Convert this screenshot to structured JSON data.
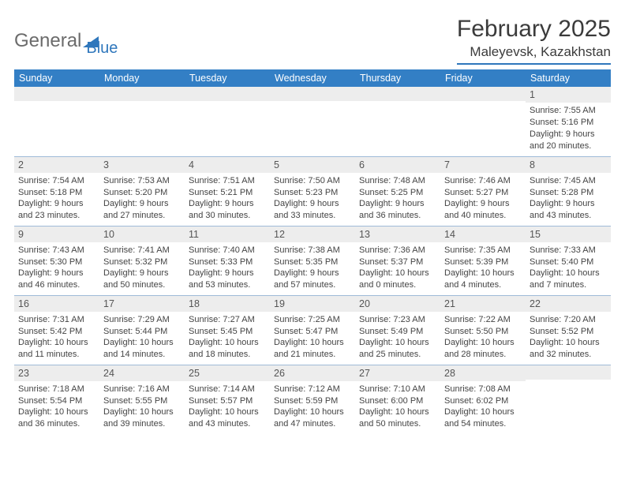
{
  "logo": {
    "word1": "General",
    "word2": "Blue"
  },
  "title": "February 2025",
  "location": "Maleyevsk, Kazakhstan",
  "colors": {
    "header_bg": "#337fc5",
    "header_text": "#ffffff",
    "daynum_bg": "#ededed",
    "rule": "#9fbbd8",
    "accent": "#2f77bc"
  },
  "day_headers": [
    "Sunday",
    "Monday",
    "Tuesday",
    "Wednesday",
    "Thursday",
    "Friday",
    "Saturday"
  ],
  "weeks": [
    [
      null,
      null,
      null,
      null,
      null,
      null,
      {
        "n": "1",
        "sr": "Sunrise: 7:55 AM",
        "ss": "Sunset: 5:16 PM",
        "d1": "Daylight: 9 hours",
        "d2": "and 20 minutes."
      }
    ],
    [
      {
        "n": "2",
        "sr": "Sunrise: 7:54 AM",
        "ss": "Sunset: 5:18 PM",
        "d1": "Daylight: 9 hours",
        "d2": "and 23 minutes."
      },
      {
        "n": "3",
        "sr": "Sunrise: 7:53 AM",
        "ss": "Sunset: 5:20 PM",
        "d1": "Daylight: 9 hours",
        "d2": "and 27 minutes."
      },
      {
        "n": "4",
        "sr": "Sunrise: 7:51 AM",
        "ss": "Sunset: 5:21 PM",
        "d1": "Daylight: 9 hours",
        "d2": "and 30 minutes."
      },
      {
        "n": "5",
        "sr": "Sunrise: 7:50 AM",
        "ss": "Sunset: 5:23 PM",
        "d1": "Daylight: 9 hours",
        "d2": "and 33 minutes."
      },
      {
        "n": "6",
        "sr": "Sunrise: 7:48 AM",
        "ss": "Sunset: 5:25 PM",
        "d1": "Daylight: 9 hours",
        "d2": "and 36 minutes."
      },
      {
        "n": "7",
        "sr": "Sunrise: 7:46 AM",
        "ss": "Sunset: 5:27 PM",
        "d1": "Daylight: 9 hours",
        "d2": "and 40 minutes."
      },
      {
        "n": "8",
        "sr": "Sunrise: 7:45 AM",
        "ss": "Sunset: 5:28 PM",
        "d1": "Daylight: 9 hours",
        "d2": "and 43 minutes."
      }
    ],
    [
      {
        "n": "9",
        "sr": "Sunrise: 7:43 AM",
        "ss": "Sunset: 5:30 PM",
        "d1": "Daylight: 9 hours",
        "d2": "and 46 minutes."
      },
      {
        "n": "10",
        "sr": "Sunrise: 7:41 AM",
        "ss": "Sunset: 5:32 PM",
        "d1": "Daylight: 9 hours",
        "d2": "and 50 minutes."
      },
      {
        "n": "11",
        "sr": "Sunrise: 7:40 AM",
        "ss": "Sunset: 5:33 PM",
        "d1": "Daylight: 9 hours",
        "d2": "and 53 minutes."
      },
      {
        "n": "12",
        "sr": "Sunrise: 7:38 AM",
        "ss": "Sunset: 5:35 PM",
        "d1": "Daylight: 9 hours",
        "d2": "and 57 minutes."
      },
      {
        "n": "13",
        "sr": "Sunrise: 7:36 AM",
        "ss": "Sunset: 5:37 PM",
        "d1": "Daylight: 10 hours",
        "d2": "and 0 minutes."
      },
      {
        "n": "14",
        "sr": "Sunrise: 7:35 AM",
        "ss": "Sunset: 5:39 PM",
        "d1": "Daylight: 10 hours",
        "d2": "and 4 minutes."
      },
      {
        "n": "15",
        "sr": "Sunrise: 7:33 AM",
        "ss": "Sunset: 5:40 PM",
        "d1": "Daylight: 10 hours",
        "d2": "and 7 minutes."
      }
    ],
    [
      {
        "n": "16",
        "sr": "Sunrise: 7:31 AM",
        "ss": "Sunset: 5:42 PM",
        "d1": "Daylight: 10 hours",
        "d2": "and 11 minutes."
      },
      {
        "n": "17",
        "sr": "Sunrise: 7:29 AM",
        "ss": "Sunset: 5:44 PM",
        "d1": "Daylight: 10 hours",
        "d2": "and 14 minutes."
      },
      {
        "n": "18",
        "sr": "Sunrise: 7:27 AM",
        "ss": "Sunset: 5:45 PM",
        "d1": "Daylight: 10 hours",
        "d2": "and 18 minutes."
      },
      {
        "n": "19",
        "sr": "Sunrise: 7:25 AM",
        "ss": "Sunset: 5:47 PM",
        "d1": "Daylight: 10 hours",
        "d2": "and 21 minutes."
      },
      {
        "n": "20",
        "sr": "Sunrise: 7:23 AM",
        "ss": "Sunset: 5:49 PM",
        "d1": "Daylight: 10 hours",
        "d2": "and 25 minutes."
      },
      {
        "n": "21",
        "sr": "Sunrise: 7:22 AM",
        "ss": "Sunset: 5:50 PM",
        "d1": "Daylight: 10 hours",
        "d2": "and 28 minutes."
      },
      {
        "n": "22",
        "sr": "Sunrise: 7:20 AM",
        "ss": "Sunset: 5:52 PM",
        "d1": "Daylight: 10 hours",
        "d2": "and 32 minutes."
      }
    ],
    [
      {
        "n": "23",
        "sr": "Sunrise: 7:18 AM",
        "ss": "Sunset: 5:54 PM",
        "d1": "Daylight: 10 hours",
        "d2": "and 36 minutes."
      },
      {
        "n": "24",
        "sr": "Sunrise: 7:16 AM",
        "ss": "Sunset: 5:55 PM",
        "d1": "Daylight: 10 hours",
        "d2": "and 39 minutes."
      },
      {
        "n": "25",
        "sr": "Sunrise: 7:14 AM",
        "ss": "Sunset: 5:57 PM",
        "d1": "Daylight: 10 hours",
        "d2": "and 43 minutes."
      },
      {
        "n": "26",
        "sr": "Sunrise: 7:12 AM",
        "ss": "Sunset: 5:59 PM",
        "d1": "Daylight: 10 hours",
        "d2": "and 47 minutes."
      },
      {
        "n": "27",
        "sr": "Sunrise: 7:10 AM",
        "ss": "Sunset: 6:00 PM",
        "d1": "Daylight: 10 hours",
        "d2": "and 50 minutes."
      },
      {
        "n": "28",
        "sr": "Sunrise: 7:08 AM",
        "ss": "Sunset: 6:02 PM",
        "d1": "Daylight: 10 hours",
        "d2": "and 54 minutes."
      },
      null
    ]
  ]
}
